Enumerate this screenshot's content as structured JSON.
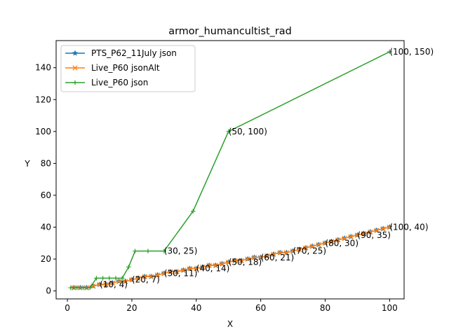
{
  "chart_data": {
    "type": "line",
    "title": "armor_humancultist_rad",
    "xlabel": "X",
    "ylabel": "Y",
    "xlim": [
      -3.5,
      104.5
    ],
    "ylim": [
      -5,
      157
    ],
    "x_ticks": [
      0,
      20,
      40,
      60,
      80,
      100
    ],
    "y_ticks": [
      0,
      20,
      40,
      60,
      80,
      100,
      120,
      140
    ],
    "grid": false,
    "legend_position": "top-left",
    "series": [
      {
        "name": "PTS_P62_11July json",
        "color": "#1f77b4",
        "marker": "star",
        "points": [
          [
            2,
            2
          ],
          [
            4,
            2
          ],
          [
            6,
            2
          ],
          [
            8,
            3
          ],
          [
            10,
            4
          ],
          [
            12,
            4
          ],
          [
            14,
            5
          ],
          [
            16,
            6
          ],
          [
            18,
            6
          ],
          [
            20,
            7
          ],
          [
            22,
            8
          ],
          [
            24,
            9
          ],
          [
            26,
            9
          ],
          [
            28,
            10
          ],
          [
            30,
            11
          ],
          [
            32,
            12
          ],
          [
            34,
            12
          ],
          [
            36,
            13
          ],
          [
            38,
            14
          ],
          [
            40,
            14
          ],
          [
            42,
            15
          ],
          [
            44,
            16
          ],
          [
            46,
            16
          ],
          [
            48,
            17
          ],
          [
            50,
            18
          ],
          [
            52,
            19
          ],
          [
            54,
            19
          ],
          [
            56,
            20
          ],
          [
            58,
            21
          ],
          [
            60,
            21
          ],
          [
            62,
            22
          ],
          [
            64,
            23
          ],
          [
            66,
            24
          ],
          [
            68,
            24
          ],
          [
            70,
            25
          ],
          [
            72,
            26
          ],
          [
            74,
            27
          ],
          [
            76,
            28
          ],
          [
            78,
            29
          ],
          [
            80,
            30
          ],
          [
            82,
            31
          ],
          [
            84,
            32
          ],
          [
            86,
            33
          ],
          [
            88,
            34
          ],
          [
            90,
            35
          ],
          [
            92,
            36
          ],
          [
            94,
            37
          ],
          [
            96,
            38
          ],
          [
            98,
            39
          ],
          [
            100,
            40
          ]
        ]
      },
      {
        "name": "Live_P60 jsonAlt",
        "color": "#ff7f0e",
        "marker": "x",
        "points": [
          [
            2,
            2
          ],
          [
            4,
            2
          ],
          [
            6,
            2
          ],
          [
            8,
            3
          ],
          [
            10,
            4
          ],
          [
            12,
            4
          ],
          [
            14,
            5
          ],
          [
            16,
            6
          ],
          [
            18,
            6
          ],
          [
            20,
            7
          ],
          [
            22,
            8
          ],
          [
            24,
            9
          ],
          [
            26,
            9
          ],
          [
            28,
            10
          ],
          [
            30,
            11
          ],
          [
            32,
            12
          ],
          [
            34,
            12
          ],
          [
            36,
            13
          ],
          [
            38,
            14
          ],
          [
            40,
            14
          ],
          [
            42,
            15
          ],
          [
            44,
            16
          ],
          [
            46,
            16
          ],
          [
            48,
            17
          ],
          [
            50,
            18
          ],
          [
            52,
            19
          ],
          [
            54,
            19
          ],
          [
            56,
            20
          ],
          [
            58,
            21
          ],
          [
            60,
            21
          ],
          [
            62,
            22
          ],
          [
            64,
            23
          ],
          [
            66,
            24
          ],
          [
            68,
            24
          ],
          [
            70,
            25
          ],
          [
            72,
            26
          ],
          [
            74,
            27
          ],
          [
            76,
            28
          ],
          [
            78,
            29
          ],
          [
            80,
            30
          ],
          [
            82,
            31
          ],
          [
            84,
            32
          ],
          [
            86,
            33
          ],
          [
            88,
            34
          ],
          [
            90,
            35
          ],
          [
            92,
            36
          ],
          [
            94,
            37
          ],
          [
            96,
            38
          ],
          [
            98,
            39
          ],
          [
            100,
            40
          ]
        ]
      },
      {
        "name": "Live_P60 json",
        "color": "#2ca02c",
        "marker": "plus",
        "points": [
          [
            1,
            2
          ],
          [
            3,
            2
          ],
          [
            5,
            2
          ],
          [
            7,
            2
          ],
          [
            9,
            8
          ],
          [
            11,
            8
          ],
          [
            13,
            8
          ],
          [
            15,
            8
          ],
          [
            17,
            8
          ],
          [
            19,
            15
          ],
          [
            21,
            25
          ],
          [
            25,
            25
          ],
          [
            30,
            25
          ],
          [
            39,
            50
          ],
          [
            50,
            100
          ],
          [
            100,
            150
          ]
        ]
      }
    ],
    "annotations": [
      {
        "text": "(10, 4)",
        "x": 10,
        "y": 4
      },
      {
        "text": "(20, 7)",
        "x": 20,
        "y": 7
      },
      {
        "text": "(30, 11)",
        "x": 30,
        "y": 11
      },
      {
        "text": "(40, 14)",
        "x": 40,
        "y": 14
      },
      {
        "text": "(50, 18)",
        "x": 50,
        "y": 18
      },
      {
        "text": "(60, 21)",
        "x": 60,
        "y": 21
      },
      {
        "text": "(70, 25)",
        "x": 70,
        "y": 25
      },
      {
        "text": "(80, 30)",
        "x": 80,
        "y": 30
      },
      {
        "text": "(90, 35)",
        "x": 90,
        "y": 35
      },
      {
        "text": "(100, 40)",
        "x": 100,
        "y": 40
      },
      {
        "text": "(30, 25)",
        "x": 30,
        "y": 25
      },
      {
        "text": "(50, 100)",
        "x": 50,
        "y": 100
      },
      {
        "text": "(100, 150)",
        "x": 100,
        "y": 150
      }
    ]
  }
}
